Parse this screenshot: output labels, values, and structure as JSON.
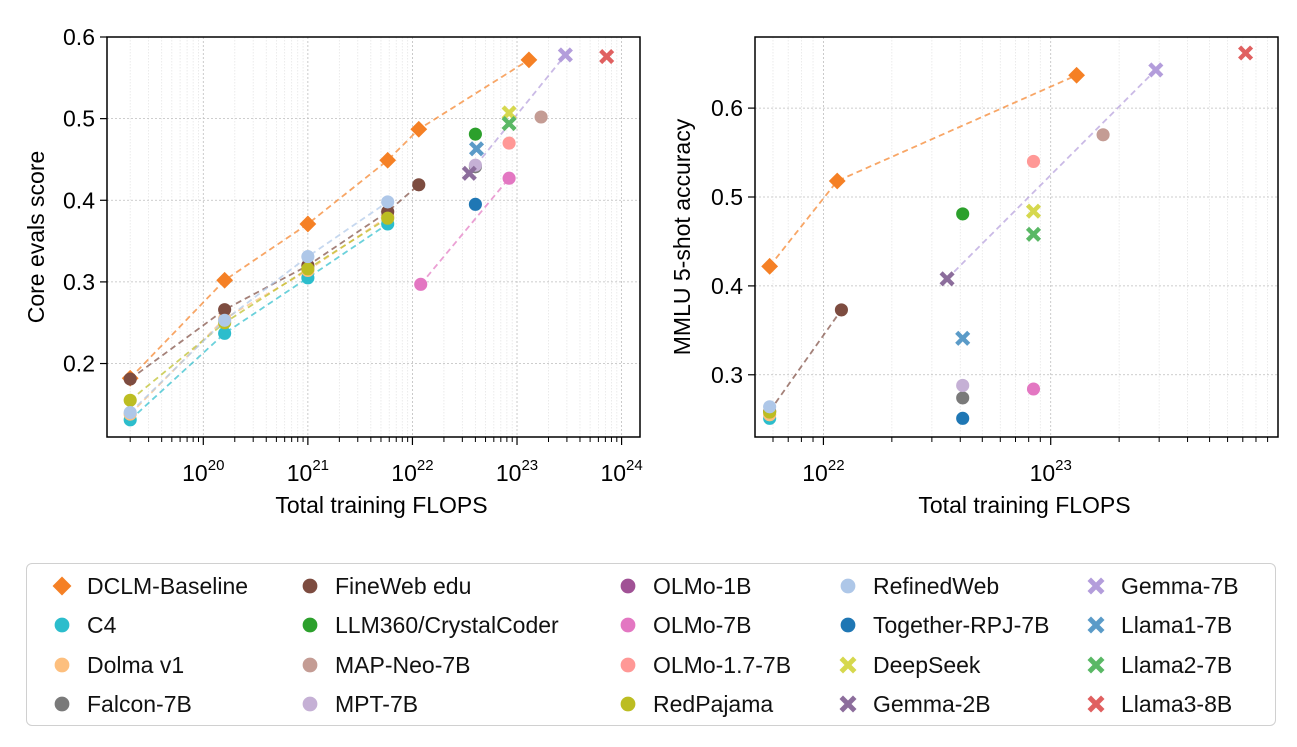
{
  "chart_data": [
    {
      "type": "scatter",
      "xlabel": "Total training FLOPS",
      "ylabel": "Core evals score",
      "xscale": "log",
      "xlim": [
        1.2e+19,
        1.5e+24
      ],
      "ylim": [
        0.11,
        0.6
      ],
      "xticks": [
        {
          "value": 1e+20,
          "base": "10",
          "exp": "20"
        },
        {
          "value": 1e+21,
          "base": "10",
          "exp": "21"
        },
        {
          "value": 1e+22,
          "base": "10",
          "exp": "22"
        },
        {
          "value": 1e+23,
          "base": "10",
          "exp": "23"
        },
        {
          "value": 1e+24,
          "base": "10",
          "exp": "24"
        }
      ],
      "yticks": [
        "0.2",
        "0.3",
        "0.4",
        "0.5",
        "0.6"
      ],
      "series": [
        {
          "name": "DCLM-Baseline",
          "points": [
            [
              2e+19,
              0.182
            ],
            [
              1.6e+20,
              0.302
            ],
            [
              1e+21,
              0.371
            ],
            [
              5.8e+21,
              0.449
            ],
            [
              1.15e+22,
              0.487
            ],
            [
              1.3e+23,
              0.572
            ]
          ]
        },
        {
          "name": "C4",
          "points": [
            [
              2e+19,
              0.131
            ],
            [
              1.6e+20,
              0.237
            ],
            [
              1e+21,
              0.305
            ],
            [
              5.8e+21,
              0.371
            ]
          ]
        },
        {
          "name": "Dolma v1",
          "points": [
            [
              2e+19,
              0.138
            ],
            [
              1.6e+20,
              0.255
            ],
            [
              1e+21,
              0.314
            ],
            [
              5.8e+21,
              0.38
            ]
          ]
        },
        {
          "name": "Falcon-7B",
          "points": [
            [
              4e+22,
              0.441
            ]
          ]
        },
        {
          "name": "FineWeb edu",
          "points": [
            [
              2e+19,
              0.181
            ],
            [
              1.6e+20,
              0.266
            ],
            [
              1e+21,
              0.32
            ],
            [
              5.8e+21,
              0.386
            ],
            [
              1.15e+22,
              0.419
            ]
          ]
        },
        {
          "name": "LLM360/CrystalCoder",
          "points": [
            [
              4e+22,
              0.481
            ]
          ]
        },
        {
          "name": "MAP-Neo-7B",
          "points": [
            [
              1.7e+23,
              0.502
            ]
          ]
        },
        {
          "name": "MPT-7B",
          "points": [
            [
              4e+22,
              0.443
            ]
          ]
        },
        {
          "name": "OLMo-1B",
          "points": []
        },
        {
          "name": "OLMo-7B",
          "points": [
            [
              1.2e+22,
              0.297
            ],
            [
              8.4e+22,
              0.427
            ]
          ]
        },
        {
          "name": "OLMo-1.7-7B",
          "points": [
            [
              8.4e+22,
              0.47
            ]
          ]
        },
        {
          "name": "RedPajama",
          "points": [
            [
              2e+19,
              0.155
            ],
            [
              1.6e+20,
              0.25
            ],
            [
              1e+21,
              0.316
            ],
            [
              5.8e+21,
              0.378
            ]
          ]
        },
        {
          "name": "RefinedWeb",
          "points": [
            [
              2e+19,
              0.14
            ],
            [
              1.6e+20,
              0.253
            ],
            [
              1e+21,
              0.331
            ],
            [
              5.8e+21,
              0.398
            ]
          ]
        },
        {
          "name": "Together-RPJ-7B",
          "points": [
            [
              4e+22,
              0.395
            ]
          ]
        },
        {
          "name": "DeepSeek",
          "points": [
            [
              8.4e+22,
              0.507
            ]
          ]
        },
        {
          "name": "Gemma-2B",
          "points": [
            [
              3.5e+22,
              0.433
            ]
          ]
        },
        {
          "name": "Gemma-7B",
          "points": [
            [
              2.9e+23,
              0.578
            ]
          ]
        },
        {
          "name": "Llama1-7B",
          "points": [
            [
              4.1e+22,
              0.463
            ]
          ]
        },
        {
          "name": "Llama2-7B",
          "points": [
            [
              8.4e+22,
              0.494
            ]
          ]
        },
        {
          "name": "Llama3-8B",
          "points": [
            [
              7.2e+23,
              0.576
            ]
          ]
        }
      ],
      "lines": [
        {
          "series": "DCLM-Baseline",
          "points": [
            [
              2e+19,
              0.182
            ],
            [
              1.6e+20,
              0.302
            ],
            [
              1e+21,
              0.371
            ],
            [
              5.8e+21,
              0.449
            ],
            [
              1.15e+22,
              0.487
            ],
            [
              1.3e+23,
              0.572
            ]
          ]
        },
        {
          "series": "C4",
          "points": [
            [
              2e+19,
              0.131
            ],
            [
              1.6e+20,
              0.237
            ],
            [
              1e+21,
              0.305
            ],
            [
              5.8e+21,
              0.371
            ]
          ]
        },
        {
          "series": "Dolma v1",
          "points": [
            [
              2e+19,
              0.138
            ],
            [
              1.6e+20,
              0.255
            ],
            [
              1e+21,
              0.314
            ],
            [
              5.8e+21,
              0.38
            ]
          ]
        },
        {
          "series": "FineWeb edu",
          "points": [
            [
              2e+19,
              0.181
            ],
            [
              1.6e+20,
              0.266
            ],
            [
              1e+21,
              0.32
            ],
            [
              5.8e+21,
              0.386
            ],
            [
              1.15e+22,
              0.419
            ]
          ]
        },
        {
          "series": "RedPajama",
          "points": [
            [
              2e+19,
              0.155
            ],
            [
              1.6e+20,
              0.25
            ],
            [
              1e+21,
              0.316
            ],
            [
              5.8e+21,
              0.378
            ]
          ]
        },
        {
          "series": "RefinedWeb",
          "points": [
            [
              2e+19,
              0.14
            ],
            [
              1.6e+20,
              0.253
            ],
            [
              1e+21,
              0.331
            ],
            [
              5.8e+21,
              0.398
            ]
          ]
        },
        {
          "series": "OLMo-7B",
          "points": [
            [
              1.2e+22,
              0.297
            ],
            [
              8.4e+22,
              0.427
            ]
          ]
        },
        {
          "series": "Gemma-7B",
          "points": [
            [
              3.5e+22,
              0.433
            ],
            [
              2.9e+23,
              0.578
            ]
          ]
        }
      ]
    },
    {
      "type": "scatter",
      "xlabel": "Total training FLOPS",
      "ylabel": "MMLU 5-shot accuracy",
      "xscale": "log",
      "xlim": [
        5e+21,
        1e+24
      ],
      "ylim": [
        0.23,
        0.68
      ],
      "xticks": [
        {
          "value": 1e+22,
          "base": "10",
          "exp": "22"
        },
        {
          "value": 1e+23,
          "base": "10",
          "exp": "23"
        }
      ],
      "yticks": [
        "0.3",
        "0.4",
        "0.5",
        "0.6"
      ],
      "series": [
        {
          "name": "DCLM-Baseline",
          "points": [
            [
              5.8e+21,
              0.422
            ],
            [
              1.15e+22,
              0.518
            ],
            [
              1.3e+23,
              0.637
            ]
          ]
        },
        {
          "name": "C4",
          "points": [
            [
              5.8e+21,
              0.251
            ]
          ]
        },
        {
          "name": "Dolma v1",
          "points": [
            [
              5.8e+21,
              0.255
            ]
          ]
        },
        {
          "name": "Falcon-7B",
          "points": [
            [
              4.1e+22,
              0.274
            ]
          ]
        },
        {
          "name": "FineWeb edu",
          "points": [
            [
              5.8e+21,
              0.259
            ],
            [
              1.2e+22,
              0.373
            ]
          ]
        },
        {
          "name": "LLM360/CrystalCoder",
          "points": [
            [
              4.1e+22,
              0.481
            ]
          ]
        },
        {
          "name": "MAP-Neo-7B",
          "points": [
            [
              1.7e+23,
              0.57
            ]
          ]
        },
        {
          "name": "MPT-7B",
          "points": [
            [
              4.1e+22,
              0.288
            ]
          ]
        },
        {
          "name": "OLMo-1B",
          "points": []
        },
        {
          "name": "OLMo-7B",
          "points": [
            [
              8.4e+22,
              0.284
            ]
          ]
        },
        {
          "name": "OLMo-1.7-7B",
          "points": [
            [
              8.4e+22,
              0.54
            ]
          ]
        },
        {
          "name": "RedPajama",
          "points": [
            [
              5.8e+21,
              0.258
            ]
          ]
        },
        {
          "name": "RefinedWeb",
          "points": [
            [
              5.8e+21,
              0.264
            ]
          ]
        },
        {
          "name": "Together-RPJ-7B",
          "points": [
            [
              4.1e+22,
              0.251
            ]
          ]
        },
        {
          "name": "DeepSeek",
          "points": [
            [
              8.4e+22,
              0.484
            ]
          ]
        },
        {
          "name": "Gemma-2B",
          "points": [
            [
              3.5e+22,
              0.408
            ]
          ]
        },
        {
          "name": "Gemma-7B",
          "points": [
            [
              2.9e+23,
              0.643
            ]
          ]
        },
        {
          "name": "Llama1-7B",
          "points": [
            [
              4.1e+22,
              0.341
            ]
          ]
        },
        {
          "name": "Llama2-7B",
          "points": [
            [
              8.4e+22,
              0.458
            ]
          ]
        },
        {
          "name": "Llama3-8B",
          "points": [
            [
              7.2e+23,
              0.662
            ]
          ]
        }
      ],
      "lines": [
        {
          "series": "DCLM-Baseline",
          "points": [
            [
              5.8e+21,
              0.422
            ],
            [
              1.15e+22,
              0.518
            ],
            [
              1.3e+23,
              0.637
            ]
          ]
        },
        {
          "series": "FineWeb edu",
          "points": [
            [
              5.8e+21,
              0.259
            ],
            [
              1.2e+22,
              0.373
            ]
          ]
        },
        {
          "series": "Gemma-7B",
          "points": [
            [
              3.5e+22,
              0.408
            ],
            [
              2.9e+23,
              0.643
            ]
          ]
        }
      ]
    }
  ],
  "legend": {
    "items": [
      {
        "name": "DCLM-Baseline",
        "color": "#f58025",
        "marker": "diamond"
      },
      {
        "name": "C4",
        "color": "#2cbdcc",
        "marker": "circle"
      },
      {
        "name": "Dolma v1",
        "color": "#fdbf7e",
        "marker": "circle"
      },
      {
        "name": "Falcon-7B",
        "color": "#7a7a7a",
        "marker": "circle"
      },
      {
        "name": "FineWeb edu",
        "color": "#7d4c40",
        "marker": "circle"
      },
      {
        "name": "LLM360/CrystalCoder",
        "color": "#2ca02c",
        "marker": "circle"
      },
      {
        "name": "MAP-Neo-7B",
        "color": "#c49c94",
        "marker": "circle"
      },
      {
        "name": "MPT-7B",
        "color": "#c5b0d5",
        "marker": "circle"
      },
      {
        "name": "OLMo-1B",
        "color": "#a05195",
        "marker": "circle"
      },
      {
        "name": "OLMo-7B",
        "color": "#e377c2",
        "marker": "circle"
      },
      {
        "name": "OLMo-1.7-7B",
        "color": "#ff9896",
        "marker": "circle"
      },
      {
        "name": "RedPajama",
        "color": "#bcbd22",
        "marker": "circle"
      },
      {
        "name": "RefinedWeb",
        "color": "#aec7e8",
        "marker": "circle"
      },
      {
        "name": "Together-RPJ-7B",
        "color": "#1f77b4",
        "marker": "circle"
      },
      {
        "name": "DeepSeek",
        "color": "#d6d84e",
        "marker": "x"
      },
      {
        "name": "Gemma-2B",
        "color": "#8c6d9c",
        "marker": "x"
      },
      {
        "name": "Gemma-7B",
        "color": "#b39ddb",
        "marker": "x"
      },
      {
        "name": "Llama1-7B",
        "color": "#5b9bc8",
        "marker": "x"
      },
      {
        "name": "Llama2-7B",
        "color": "#5ab865",
        "marker": "x"
      },
      {
        "name": "Llama3-8B",
        "color": "#e06060",
        "marker": "x"
      }
    ]
  }
}
